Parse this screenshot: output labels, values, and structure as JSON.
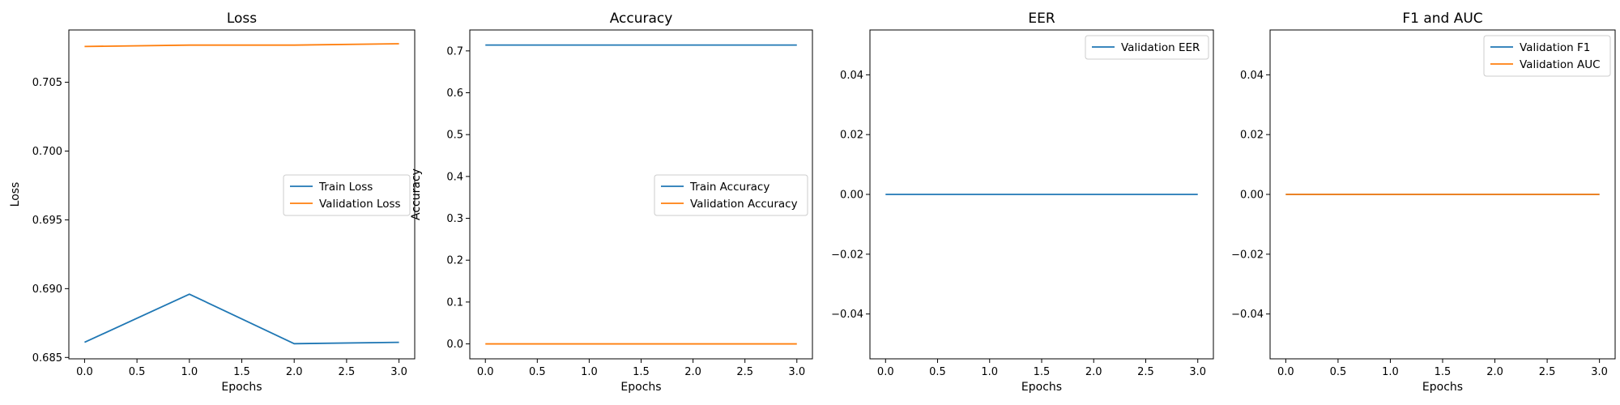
{
  "colors": {
    "blue": "#1f77b4",
    "orange": "#ff7f0e"
  },
  "chart_data": [
    {
      "type": "line",
      "title": "Loss",
      "xlabel": "Epochs",
      "ylabel": "Loss",
      "x": [
        0,
        1,
        2,
        3
      ],
      "xlim": [
        -0.15,
        3.15
      ],
      "xticks": [
        0,
        0.5,
        1,
        1.5,
        2,
        2.5,
        3
      ],
      "xtick_labels": [
        "0.0",
        "0.5",
        "1.0",
        "1.5",
        "2.0",
        "2.5",
        "3.0"
      ],
      "ylim": [
        0.6849,
        0.7088
      ],
      "yticks": [
        0.685,
        0.69,
        0.695,
        0.7,
        0.705
      ],
      "ytick_labels": [
        "0.685",
        "0.690",
        "0.695",
        "0.700",
        "0.705"
      ],
      "series": [
        {
          "name": "Train Loss",
          "color": "blue",
          "values": [
            0.6861,
            0.6896,
            0.686,
            0.6861
          ]
        },
        {
          "name": "Validation Loss",
          "color": "orange",
          "values": [
            0.7076,
            0.7077,
            0.7077,
            0.7078
          ]
        }
      ],
      "legend": "center-right",
      "grid": false
    },
    {
      "type": "line",
      "title": "Accuracy",
      "xlabel": "Epochs",
      "ylabel": "Accuracy",
      "x": [
        0,
        1,
        2,
        3
      ],
      "xlim": [
        -0.15,
        3.15
      ],
      "xticks": [
        0,
        0.5,
        1,
        1.5,
        2,
        2.5,
        3
      ],
      "xtick_labels": [
        "0.0",
        "0.5",
        "1.0",
        "1.5",
        "2.0",
        "2.5",
        "3.0"
      ],
      "ylim": [
        -0.0357,
        0.75
      ],
      "yticks": [
        0,
        0.1,
        0.2,
        0.3,
        0.4,
        0.5,
        0.6,
        0.7
      ],
      "ytick_labels": [
        "0.0",
        "0.1",
        "0.2",
        "0.3",
        "0.4",
        "0.5",
        "0.6",
        "0.7"
      ],
      "series": [
        {
          "name": "Train Accuracy",
          "color": "blue",
          "values": [
            0.714,
            0.714,
            0.714,
            0.714
          ]
        },
        {
          "name": "Validation Accuracy",
          "color": "orange",
          "values": [
            0.0,
            0.0,
            0.0,
            0.0
          ]
        }
      ],
      "legend": "center-right",
      "grid": false
    },
    {
      "type": "line",
      "title": "EER",
      "xlabel": "Epochs",
      "ylabel": "",
      "x": [
        0,
        1,
        2,
        3
      ],
      "xlim": [
        -0.15,
        3.15
      ],
      "xticks": [
        0,
        0.5,
        1,
        1.5,
        2,
        2.5,
        3
      ],
      "xtick_labels": [
        "0.0",
        "0.5",
        "1.0",
        "1.5",
        "2.0",
        "2.5",
        "3.0"
      ],
      "ylim": [
        -0.055,
        0.055
      ],
      "yticks": [
        -0.04,
        -0.02,
        0,
        0.02,
        0.04
      ],
      "ytick_labels": [
        "−0.04",
        "−0.02",
        "0.00",
        "0.02",
        "0.04"
      ],
      "series": [
        {
          "name": "Validation EER",
          "color": "blue",
          "values": [
            0,
            0,
            0,
            0
          ]
        }
      ],
      "legend": "upper-right",
      "grid": false
    },
    {
      "type": "line",
      "title": "F1 and AUC",
      "xlabel": "Epochs",
      "ylabel": "",
      "x": [
        0,
        1,
        2,
        3
      ],
      "xlim": [
        -0.15,
        3.15
      ],
      "xticks": [
        0,
        0.5,
        1,
        1.5,
        2,
        2.5,
        3
      ],
      "xtick_labels": [
        "0.0",
        "0.5",
        "1.0",
        "1.5",
        "2.0",
        "2.5",
        "3.0"
      ],
      "ylim": [
        -0.055,
        0.055
      ],
      "yticks": [
        -0.04,
        -0.02,
        0,
        0.02,
        0.04
      ],
      "ytick_labels": [
        "−0.04",
        "−0.02",
        "0.00",
        "0.02",
        "0.04"
      ],
      "series": [
        {
          "name": "Validation F1",
          "color": "blue",
          "values": [
            0,
            0,
            0,
            0
          ]
        },
        {
          "name": "Validation AUC",
          "color": "orange",
          "values": [
            0,
            0,
            0,
            0
          ]
        }
      ],
      "legend": "upper-right",
      "grid": false
    }
  ]
}
